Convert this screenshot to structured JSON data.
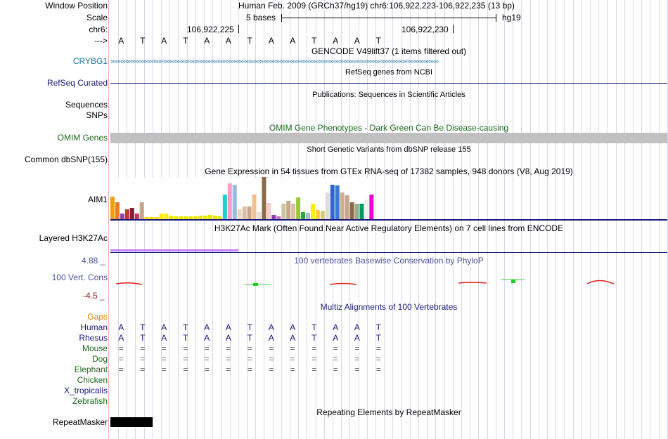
{
  "header": {
    "window_position_label": "Window Position",
    "scale_label": "Scale",
    "chrom_label": "chr6:",
    "arrow_label": "--->",
    "assembly_position": "Human Feb. 2009 (GRCh37/hg19)   chr6:106,922,223-106,922,235 (13 bp)",
    "scale_text": "5 bases",
    "db": "hg19",
    "coord1": "106,922,225",
    "coord2": "106,922,230"
  },
  "sequence": [
    "A",
    "T",
    "A",
    "T",
    "A",
    "A",
    "T",
    "A",
    "A",
    "T",
    "A",
    "A",
    "T"
  ],
  "tracks": {
    "gencode": {
      "title": "GENCODE V49lift37 (1 items filtered out)",
      "gene": "CRYBG1"
    },
    "refseq": {
      "title": "RefSeq genes from NCBI",
      "label": "RefSeq Curated"
    },
    "publications": {
      "title": "Publications: Sequences in Scientific Articles",
      "label1": "Sequences",
      "label2": "SNPs"
    },
    "omim": {
      "title": "OMIM Gene Phenotypes - Dark Green Can Be Disease-causing",
      "label": "OMIM Genes"
    },
    "dbsnp": {
      "title": "Short Genetic Variants from dbSNP release 155",
      "label": "Common dbSNP(155)"
    },
    "gtex": {
      "title": "Gene Expression in 54 tissues from GTEx RNA-seq of 17382 samples, 948 donors (V8, Aug 2019)",
      "label": "AIM1"
    },
    "h3k27ac": {
      "title": "H3K27Ac Mark (Often Found Near Active Regulatory Elements) on 7 cell lines from ENCODE",
      "label": "Layered H3K27Ac"
    },
    "phylop": {
      "title": "100 vertebrates Basewise Conservation by PhyloP",
      "label": "100 Vert. Cons",
      "max": "4.88 _",
      "min": "-4.5 _"
    },
    "multiz": {
      "title": "Multiz Alignments of 100 Vertebrates"
    },
    "repeatmasker": {
      "title": "Repeating Elements by RepeatMasker",
      "label": "RepeatMasker"
    }
  },
  "species": {
    "gaps": "Gaps",
    "human": "Human",
    "rhesus": "Rhesus",
    "mouse": "Mouse",
    "dog": "Dog",
    "elephant": "Elephant",
    "chicken": "Chicken",
    "xtrop": "X_tropicalis",
    "zebrafish": "Zebrafish"
  },
  "alignment": {
    "human": [
      "A",
      "T",
      "A",
      "T",
      "A",
      "A",
      "T",
      "A",
      "A",
      "T",
      "A",
      "A",
      "T"
    ],
    "rhesus": [
      "A",
      "T",
      "A",
      "T",
      "A",
      "A",
      "T",
      "A",
      "A",
      "T",
      "A",
      "A",
      "T"
    ],
    "mouse": [
      "=",
      "=",
      "=",
      "=",
      "=",
      "=",
      "=",
      "=",
      "=",
      "=",
      "=",
      "=",
      "="
    ],
    "dog": [
      "=",
      "=",
      "=",
      "=",
      "=",
      "=",
      "=",
      "=",
      "=",
      "=",
      "=",
      "=",
      "="
    ],
    "elephant": [
      "=",
      "=",
      "=",
      "=",
      "=",
      "=",
      "=",
      "=",
      "=",
      "=",
      "=",
      "=",
      "="
    ]
  },
  "gtex_bars": [
    {
      "v": 32,
      "c": "#f39c12"
    },
    {
      "v": 24,
      "c": "#e67e22"
    },
    {
      "v": 8,
      "c": "#8e44ad"
    },
    {
      "v": 14,
      "c": "#c0392b"
    },
    {
      "v": 16,
      "c": "#8b1a3a"
    },
    {
      "v": 8,
      "c": "#cc3366"
    },
    {
      "v": 24,
      "c": "#c8a68a"
    },
    {
      "v": 3,
      "c": "#ffd700"
    },
    {
      "v": 3,
      "c": "#ffd700"
    },
    {
      "v": 3,
      "c": "#ffd700"
    },
    {
      "v": 8,
      "c": "#ffee00"
    },
    {
      "v": 8,
      "c": "#ffee00"
    },
    {
      "v": 5,
      "c": "#e8e800"
    },
    {
      "v": 4,
      "c": "#e8e800"
    },
    {
      "v": 4,
      "c": "#e8e800"
    },
    {
      "v": 4,
      "c": "#e8e800"
    },
    {
      "v": 4,
      "c": "#e8e800"
    },
    {
      "v": 4,
      "c": "#e8e800"
    },
    {
      "v": 5,
      "c": "#e8e800"
    },
    {
      "v": 5,
      "c": "#e8e800"
    },
    {
      "v": 6,
      "c": "#e8e800"
    },
    {
      "v": 5,
      "c": "#e8e800"
    },
    {
      "v": 4,
      "c": "#e8e800"
    },
    {
      "v": 35,
      "c": "#1ad0d0"
    },
    {
      "v": 51,
      "c": "#ff99cc"
    },
    {
      "v": 49,
      "c": "#99bbdd"
    },
    {
      "v": 14,
      "c": "#eed5c2"
    },
    {
      "v": 18,
      "c": "#d9c0a8"
    },
    {
      "v": 18,
      "c": "#c8a68a"
    },
    {
      "v": 35,
      "c": "#f0c090"
    },
    {
      "v": 10,
      "c": "#e8e0d8"
    },
    {
      "v": 60,
      "c": "#8b6a4a"
    },
    {
      "v": 23,
      "c": "#f5cccc"
    },
    {
      "v": 6,
      "c": "#8844aa"
    },
    {
      "v": 4,
      "c": "#cc66cc"
    },
    {
      "v": 22,
      "c": "#c8c8a0"
    },
    {
      "v": 26,
      "c": "#c8a68a"
    },
    {
      "v": 22,
      "c": "#d9c0a8"
    },
    {
      "v": 31,
      "c": "#99cc33"
    },
    {
      "v": 10,
      "c": "#22aa44"
    },
    {
      "v": 9,
      "c": "#aabbcc"
    },
    {
      "v": 22,
      "c": "#ffee00"
    },
    {
      "v": 13,
      "c": "#ffcc44"
    },
    {
      "v": 12,
      "c": "#ddcc77"
    },
    {
      "v": 38,
      "c": "#dddddd"
    },
    {
      "v": 49,
      "c": "#3366cc"
    },
    {
      "v": 48,
      "c": "#3a77d8"
    },
    {
      "v": 38,
      "c": "#ccb088"
    },
    {
      "v": 34,
      "c": "#c8a68a"
    },
    {
      "v": 24,
      "c": "#8b6a4a"
    },
    {
      "v": 22,
      "c": "#99aa88"
    },
    {
      "v": 22,
      "c": "#009966"
    },
    {
      "v": 28,
      "c": "#f0f0f0"
    },
    {
      "v": 35,
      "c": "#ee00cc"
    }
  ],
  "colors": {
    "accent_blue": "#1a1a7a",
    "gencode": "#1a78a8",
    "omim": "#1a6a1a",
    "phylop": "#4f4f9f",
    "gaps": "#e08000",
    "h3k27ac": "#c080ff"
  }
}
